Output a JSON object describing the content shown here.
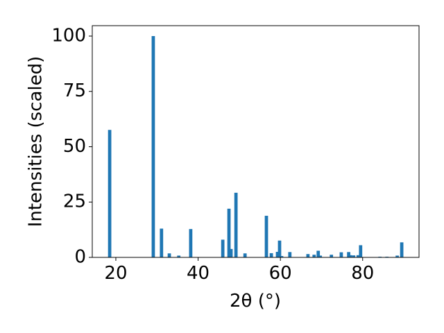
{
  "chart_data": {
    "type": "bar",
    "xlabel": "2θ (°)",
    "ylabel": "Intensities (scaled)",
    "color": "#1f77b4",
    "x": [
      18.5,
      29.1,
      31.1,
      33.0,
      35.3,
      38.2,
      46.0,
      47.5,
      48.0,
      49.2,
      51.4,
      56.6,
      57.8,
      59.3,
      59.8,
      60.3,
      62.3,
      66.7,
      68.2,
      69.2,
      69.7,
      72.4,
      74.8,
      76.6,
      77.0,
      77.8,
      78.9,
      79.5,
      84.2,
      85.9,
      88.4,
      89.5
    ],
    "values": [
      57.6,
      100,
      13,
      1.8,
      0.8,
      12.8,
      8,
      22,
      3.8,
      29.2,
      1.8,
      18.8,
      1.9,
      2.5,
      7.6,
      0.6,
      2.4,
      1.5,
      1.2,
      3,
      0.8,
      1.2,
      2.3,
      2.4,
      1.0,
      0.9,
      1.0,
      5.5,
      0.3,
      0.3,
      0.8,
      6.8
    ],
    "xlim": [
      14.27,
      93.7
    ],
    "ylim": [
      0,
      104.7
    ],
    "xticks": [
      20,
      40,
      60,
      80
    ],
    "yticks": [
      0,
      25,
      50,
      75,
      100
    ]
  }
}
